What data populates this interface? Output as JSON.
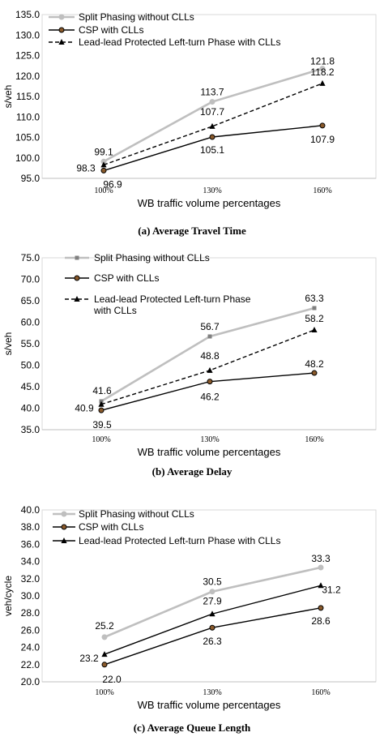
{
  "chart_data": [
    {
      "type": "line",
      "caption": "(a) Average Travel Time",
      "xlabel": "WB traffic volume percentages",
      "ylabel": "s/veh",
      "categories": [
        "100%",
        "130%",
        "160%"
      ],
      "ylim": [
        95.0,
        135.0
      ],
      "ytick_step": 5,
      "ytick_labels": [
        "95.0",
        "100.0",
        "105.0",
        "110.0",
        "115.0",
        "120.0",
        "125.0",
        "130.0",
        "135.0"
      ],
      "grid": false,
      "legend": "top-left",
      "series": [
        {
          "name": "Split Phasing without CLLs",
          "values": [
            99.1,
            113.7,
            121.8
          ],
          "labels": [
            "99.1",
            "113.7",
            "121.8"
          ],
          "color": "#bfbfbf",
          "dash": "",
          "marker": "circle"
        },
        {
          "name": "CSP with CLLs",
          "values": [
            96.9,
            105.1,
            107.9
          ],
          "labels": [
            "96.9",
            "105.1",
            "107.9"
          ],
          "color": "#000000",
          "dash": "",
          "marker": "circle"
        },
        {
          "name": "Lead-lead Protected Left-turn Phase with CLLs",
          "values": [
            98.3,
            107.7,
            118.2
          ],
          "labels": [
            "98.3",
            "107.7",
            "118.2"
          ],
          "color": "#000000",
          "dash": "5,3",
          "marker": "triangle"
        }
      ]
    },
    {
      "type": "line",
      "caption": "(b)  Average Delay",
      "xlabel": "WB traffic volume percentages",
      "ylabel": "s/veh",
      "categories": [
        "100%",
        "130%",
        "160%"
      ],
      "ylim": [
        35.0,
        75.0
      ],
      "ytick_step": 5,
      "ytick_labels": [
        "35.0",
        "40.0",
        "45.0",
        "50.0",
        "55.0",
        "60.0",
        "65.0",
        "70.0",
        "75.0"
      ],
      "grid": false,
      "legend": "top-left",
      "series": [
        {
          "name": "Split Phasing without CLLs",
          "values": [
            41.6,
            56.7,
            63.3
          ],
          "labels": [
            "41.6",
            "56.7",
            "63.3"
          ],
          "color": "#bfbfbf",
          "dash": "",
          "marker": "square"
        },
        {
          "name": "CSP with CLLs",
          "values": [
            39.5,
            46.2,
            48.2
          ],
          "labels": [
            "39.5",
            "46.2",
            "48.2"
          ],
          "color": "#000000",
          "dash": "",
          "marker": "circle"
        },
        {
          "name": "Lead-lead Protected Left-turn Phase with CLLs",
          "values": [
            40.9,
            48.8,
            58.2
          ],
          "labels": [
            "40.9",
            "48.8",
            "58.2"
          ],
          "color": "#000000",
          "dash": "5,3",
          "marker": "triangle"
        }
      ]
    },
    {
      "type": "line",
      "caption": "(c)  Average Queue Length",
      "xlabel": "WB traffic volume percentages",
      "ylabel": "veh/cycle",
      "categories": [
        "100%",
        "130%",
        "160%"
      ],
      "ylim": [
        20.0,
        40.0
      ],
      "ytick_step": 2,
      "ytick_labels": [
        "20.0",
        "22.0",
        "24.0",
        "26.0",
        "28.0",
        "30.0",
        "32.0",
        "34.0",
        "36.0",
        "38.0",
        "40.0"
      ],
      "grid": false,
      "legend": "top-left",
      "series": [
        {
          "name": "Split Phasing without CLLs",
          "values": [
            25.2,
            30.5,
            33.3
          ],
          "labels": [
            "25.2",
            "30.5",
            "33.3"
          ],
          "color": "#bfbfbf",
          "dash": "",
          "marker": "circle"
        },
        {
          "name": "CSP with CLLs",
          "values": [
            22.0,
            26.3,
            28.6
          ],
          "labels": [
            "22.0",
            "26.3",
            "28.6"
          ],
          "color": "#000000",
          "dash": "",
          "marker": "circle"
        },
        {
          "name": "Lead-lead Protected Left-turn Phase with CLLs",
          "values": [
            23.2,
            27.9,
            31.2
          ],
          "labels": [
            "23.2",
            "27.9",
            "31.2"
          ],
          "color": "#000000",
          "dash": "",
          "marker": "triangle"
        }
      ]
    }
  ]
}
